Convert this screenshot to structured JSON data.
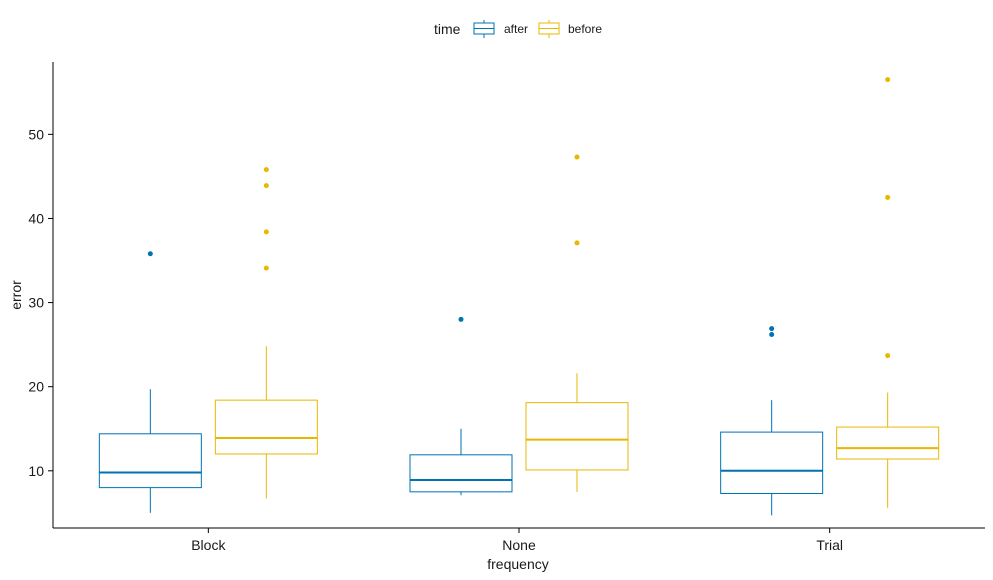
{
  "chart_data": {
    "type": "boxplot",
    "xlabel": "frequency",
    "ylabel": "error",
    "categories": [
      "Block",
      "None",
      "Trial"
    ],
    "ylim": [
      3.2,
      58.6
    ],
    "yticks": [
      10,
      20,
      30,
      40,
      50
    ],
    "grid": false,
    "legend": {
      "title": "time",
      "position": "top",
      "entries": [
        {
          "name": "after",
          "color": "#0072B2"
        },
        {
          "name": "before",
          "color": "#E7B800"
        }
      ]
    },
    "series": [
      {
        "name": "after",
        "color": "#0072B2",
        "boxes": [
          {
            "category": "Block",
            "whisker_low": 5.0,
            "q1": 8.0,
            "median": 9.8,
            "q3": 14.4,
            "whisker_high": 19.7,
            "outliers": [
              35.8
            ]
          },
          {
            "category": "None",
            "whisker_low": 7.1,
            "q1": 7.5,
            "median": 8.9,
            "q3": 11.9,
            "whisker_high": 15.0,
            "outliers": [
              28.0
            ]
          },
          {
            "category": "Trial",
            "whisker_low": 4.7,
            "q1": 7.3,
            "median": 10.0,
            "q3": 14.6,
            "whisker_high": 18.4,
            "outliers": [
              26.2,
              26.9
            ]
          }
        ]
      },
      {
        "name": "before",
        "color": "#E7B800",
        "boxes": [
          {
            "category": "Block",
            "whisker_low": 6.7,
            "q1": 12.0,
            "median": 13.9,
            "q3": 18.4,
            "whisker_high": 24.8,
            "outliers": [
              34.1,
              38.4,
              43.9,
              45.8
            ]
          },
          {
            "category": "None",
            "whisker_low": 7.5,
            "q1": 10.1,
            "median": 13.7,
            "q3": 18.1,
            "whisker_high": 21.6,
            "outliers": [
              37.1,
              47.3
            ]
          },
          {
            "category": "Trial",
            "whisker_low": 5.6,
            "q1": 11.4,
            "median": 12.7,
            "q3": 15.2,
            "whisker_high": 19.3,
            "outliers": [
              23.7,
              42.5,
              56.5
            ]
          }
        ]
      }
    ]
  }
}
